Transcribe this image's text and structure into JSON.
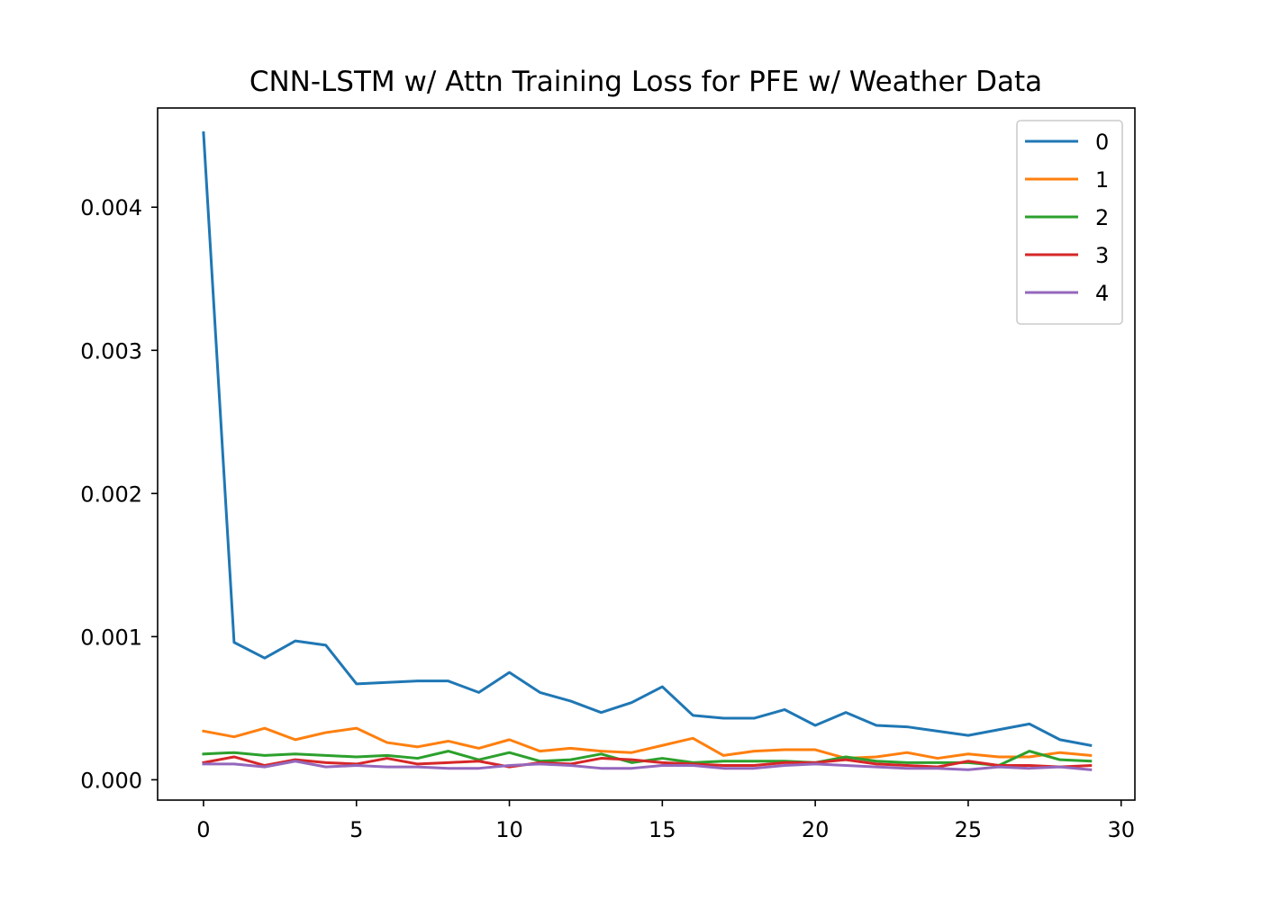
{
  "chart_data": {
    "type": "line",
    "title": "CNN-LSTM w/ Attn Training Loss for PFE w/ Weather Data",
    "xlabel": "",
    "ylabel": "",
    "xlim": [
      -1.5,
      30.45
    ],
    "ylim": [
      -0.000142,
      0.004693
    ],
    "xticks": [
      0,
      5,
      10,
      15,
      20,
      25,
      30
    ],
    "yticks": [
      0.0,
      0.001,
      0.002,
      0.003,
      0.004
    ],
    "xtick_labels": [
      "0",
      "5",
      "10",
      "15",
      "20",
      "25",
      "30"
    ],
    "ytick_labels": [
      "0.000",
      "0.001",
      "0.002",
      "0.003",
      "0.004"
    ],
    "grid": false,
    "legend_position": "top-right",
    "x": [
      0,
      1,
      2,
      3,
      4,
      5,
      6,
      7,
      8,
      9,
      10,
      11,
      12,
      13,
      14,
      15,
      16,
      17,
      18,
      19,
      20,
      21,
      22,
      23,
      24,
      25,
      26,
      27,
      28,
      29
    ],
    "series": [
      {
        "name": "0",
        "color": "#1f77b4",
        "values": [
          0.00452,
          0.00096,
          0.00085,
          0.00097,
          0.00094,
          0.00067,
          0.00068,
          0.00069,
          0.00069,
          0.00061,
          0.00075,
          0.00061,
          0.00055,
          0.00047,
          0.00054,
          0.00065,
          0.00045,
          0.00043,
          0.00043,
          0.00049,
          0.00038,
          0.00047,
          0.00038,
          0.00037,
          0.00034,
          0.00031,
          0.00035,
          0.00039,
          0.00028,
          0.00024
        ]
      },
      {
        "name": "1",
        "color": "#ff7f0e",
        "values": [
          0.00034,
          0.0003,
          0.00036,
          0.00028,
          0.00033,
          0.00036,
          0.00026,
          0.00023,
          0.00027,
          0.00022,
          0.00028,
          0.0002,
          0.00022,
          0.0002,
          0.00019,
          0.00024,
          0.00029,
          0.00017,
          0.0002,
          0.00021,
          0.00021,
          0.00015,
          0.00016,
          0.00019,
          0.00015,
          0.00018,
          0.00016,
          0.00016,
          0.00019,
          0.00017
        ]
      },
      {
        "name": "2",
        "color": "#2ca02c",
        "values": [
          0.00018,
          0.00019,
          0.00017,
          0.00018,
          0.00017,
          0.00016,
          0.00017,
          0.00015,
          0.0002,
          0.00014,
          0.00019,
          0.00013,
          0.00014,
          0.00018,
          0.00012,
          0.00015,
          0.00012,
          0.00013,
          0.00013,
          0.00013,
          0.00012,
          0.00016,
          0.00013,
          0.00012,
          0.00012,
          0.00012,
          0.0001,
          0.0002,
          0.00014,
          0.00013
        ]
      },
      {
        "name": "3",
        "color": "#d62728",
        "values": [
          0.00012,
          0.00016,
          0.0001,
          0.00014,
          0.00012,
          0.00011,
          0.00015,
          0.00011,
          0.00012,
          0.00013,
          9e-05,
          0.00012,
          0.00011,
          0.00015,
          0.00014,
          0.00012,
          0.00011,
          0.0001,
          0.0001,
          0.00012,
          0.00012,
          0.00014,
          0.00011,
          0.0001,
          9e-05,
          0.00013,
          0.0001,
          0.0001,
          9e-05,
          0.0001
        ]
      },
      {
        "name": "4",
        "color": "#9467bd",
        "values": [
          0.00011,
          0.00011,
          9e-05,
          0.00013,
          9e-05,
          0.0001,
          9e-05,
          9e-05,
          8e-05,
          8e-05,
          0.0001,
          0.00011,
          0.0001,
          8e-05,
          8e-05,
          0.0001,
          0.0001,
          8e-05,
          8e-05,
          0.0001,
          0.00011,
          0.0001,
          9e-05,
          8e-05,
          8e-05,
          7e-05,
          9e-05,
          8e-05,
          9e-05,
          7e-05
        ]
      }
    ]
  }
}
